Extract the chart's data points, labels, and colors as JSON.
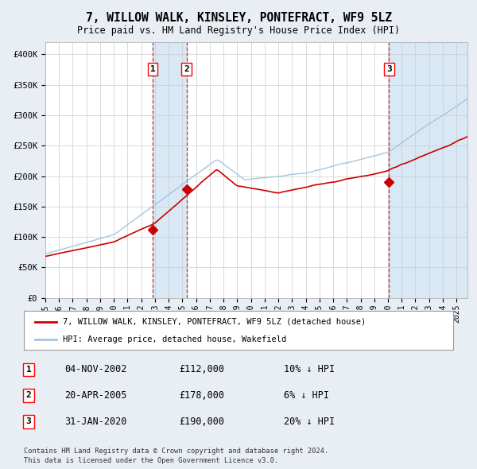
{
  "title": "7, WILLOW WALK, KINSLEY, PONTEFRACT, WF9 5LZ",
  "subtitle": "Price paid vs. HM Land Registry's House Price Index (HPI)",
  "legend_property": "7, WILLOW WALK, KINSLEY, PONTEFRACT, WF9 5LZ (detached house)",
  "legend_hpi": "HPI: Average price, detached house, Wakefield",
  "footer1": "Contains HM Land Registry data © Crown copyright and database right 2024.",
  "footer2": "This data is licensed under the Open Government Licence v3.0.",
  "transactions": [
    {
      "num": 1,
      "date": "04-NOV-2002",
      "price": 112000,
      "hpi_diff": "10% ↓ HPI",
      "date_decimal": 2002.84
    },
    {
      "num": 2,
      "date": "20-APR-2005",
      "price": 178000,
      "hpi_diff": "6% ↓ HPI",
      "date_decimal": 2005.3
    },
    {
      "num": 3,
      "date": "31-JAN-2020",
      "price": 190000,
      "hpi_diff": "20% ↓ HPI",
      "date_decimal": 2020.08
    }
  ],
  "hpi_color": "#a8c4e0",
  "property_color": "#cc0000",
  "background_color": "#e8eef4",
  "plot_bg_color": "#ffffff",
  "grid_color": "#cccccc",
  "highlight_color": "#d8e8f4",
  "ylim": [
    0,
    420000
  ],
  "yticks": [
    0,
    50000,
    100000,
    150000,
    200000,
    250000,
    300000,
    350000,
    400000
  ],
  "xstart": 1995,
  "xend": 2025.8
}
